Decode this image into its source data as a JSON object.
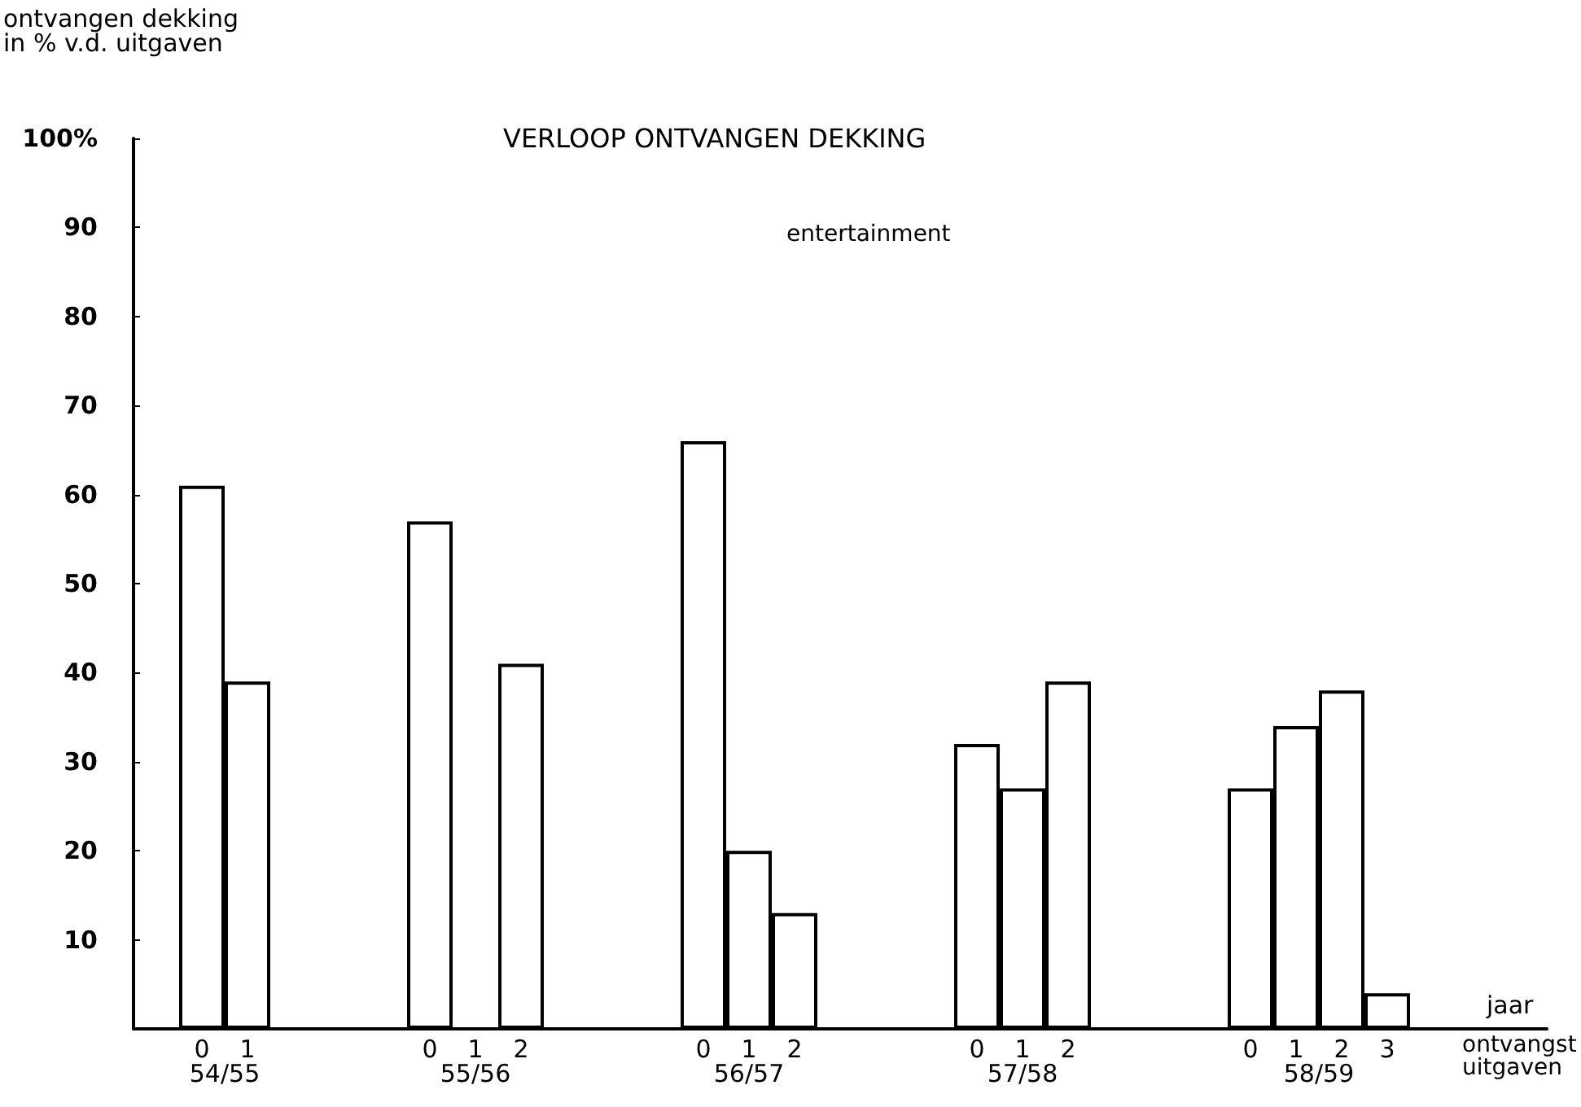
{
  "chart_data": {
    "type": "bar",
    "title": "VERLOOP ONTVANGEN DEKKING",
    "subtitle": "entertainment",
    "ylabel": "ontvangen dekking\nin % v.d. uitgaven",
    "xlabel": "jaar",
    "categories": [
      null,
      "0",
      "1",
      null,
      null,
      null,
      "0",
      "1",
      "2",
      null,
      null,
      null,
      "0",
      "1",
      "2",
      null,
      null,
      null,
      "0",
      "1",
      "2",
      null,
      null,
      null,
      "0",
      "1",
      "2",
      "3",
      null,
      null,
      null
    ],
    "values": [
      null,
      61,
      39,
      null,
      null,
      null,
      57,
      null,
      41,
      null,
      null,
      null,
      66,
      20,
      13,
      null,
      null,
      null,
      32,
      27,
      39,
      null,
      null,
      null,
      27,
      34,
      38,
      4,
      null,
      null,
      null
    ],
    "color": "#ffffff",
    "ylim": [
      0,
      100
    ],
    "yticks": [
      10,
      20,
      30,
      40,
      50,
      60,
      70,
      80,
      90,
      {
        "value": 100,
        "label": "100%"
      }
    ],
    "annotations": [
      "54/55",
      "55/56",
      "56/57",
      "57/58",
      "58/59",
      "ontvangst",
      "uitgaven"
    ]
  }
}
